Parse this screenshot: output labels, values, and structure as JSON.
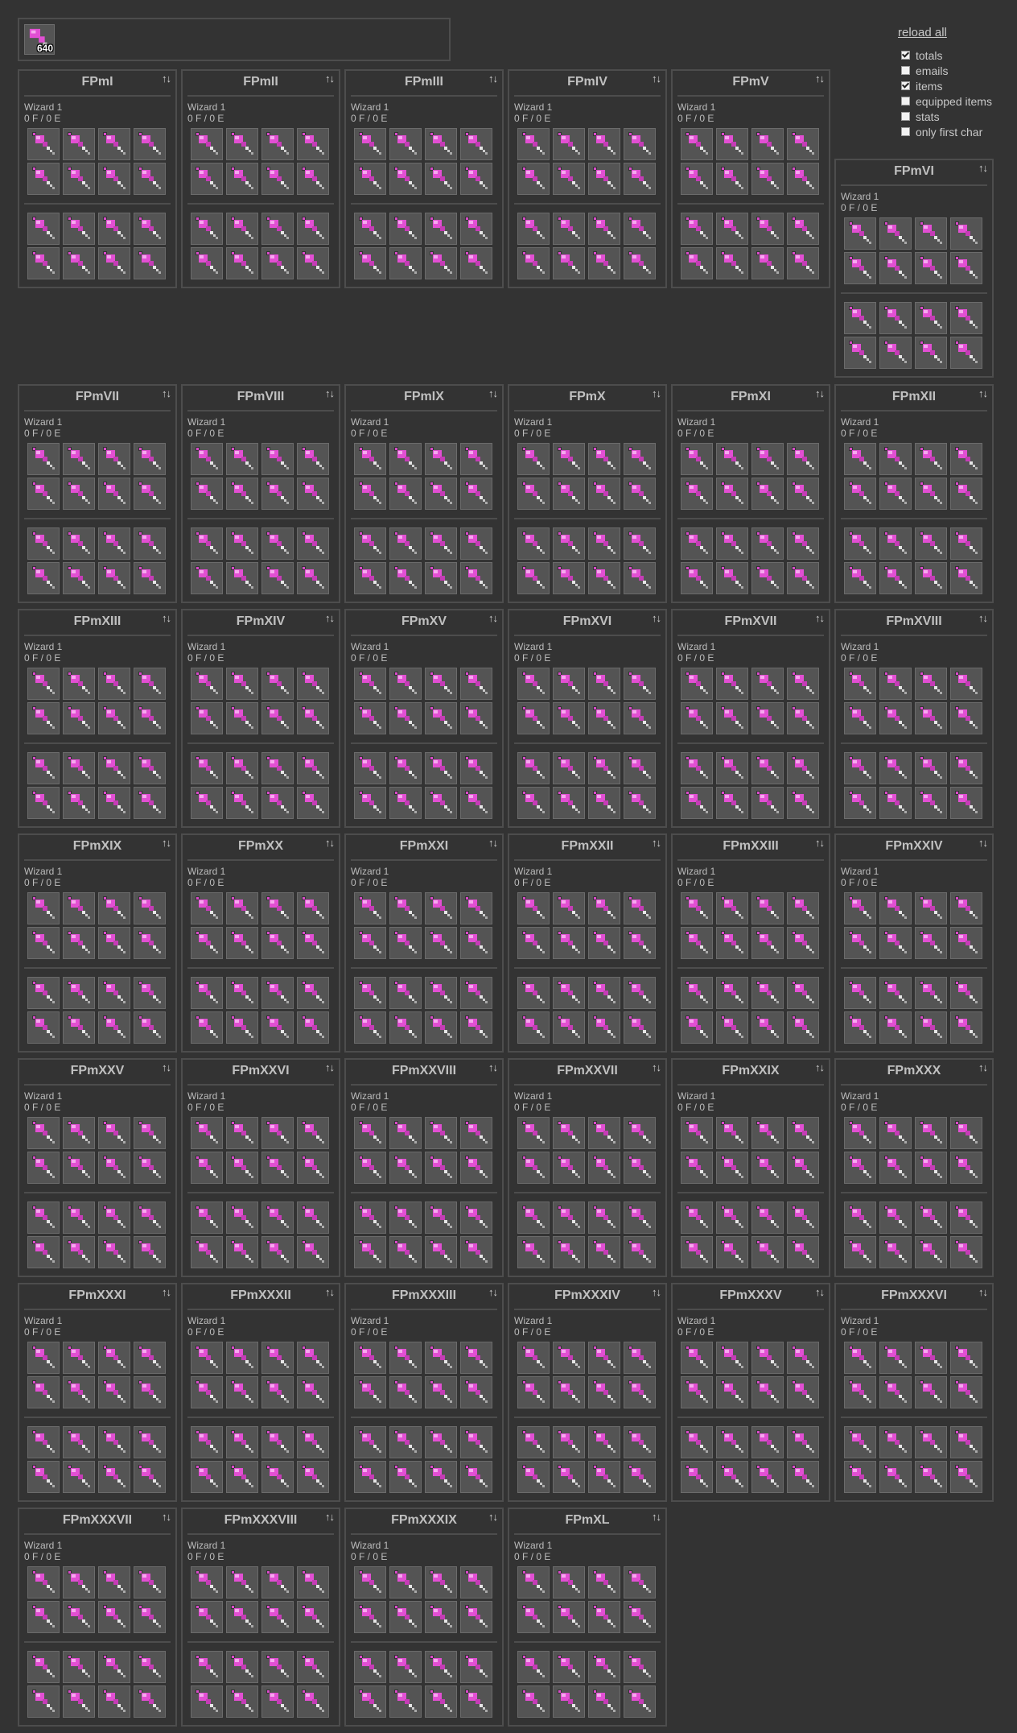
{
  "totals": {
    "count": "640",
    "item_icon": "pink-wand-icon"
  },
  "options": {
    "reload_label": "reload all",
    "checkboxes": [
      {
        "label": "totals",
        "checked": true
      },
      {
        "label": "emails",
        "checked": false
      },
      {
        "label": "items",
        "checked": true
      },
      {
        "label": "equipped items",
        "checked": false
      },
      {
        "label": "stats",
        "checked": false
      },
      {
        "label": "only first char",
        "checked": false
      }
    ]
  },
  "sort_icon": "↑↓",
  "slot_item": "pink-wand-icon",
  "colors": {
    "wand_pink": "#e24fd3",
    "wand_light": "#f6a8ee",
    "slot_bg": "#545454",
    "background": "#333333"
  },
  "characters": [
    {
      "name": "FPmI",
      "class": "Wizard 1",
      "fame": "0 F / 0 E"
    },
    {
      "name": "FPmII",
      "class": "Wizard 1",
      "fame": "0 F / 0 E"
    },
    {
      "name": "FPmIII",
      "class": "Wizard 1",
      "fame": "0 F / 0 E"
    },
    {
      "name": "FPmIV",
      "class": "Wizard 1",
      "fame": "0 F / 0 E"
    },
    {
      "name": "FPmV",
      "class": "Wizard 1",
      "fame": "0 F / 0 E"
    },
    {
      "name": "FPmVI",
      "class": "Wizard 1",
      "fame": "0 F / 0 E"
    },
    {
      "name": "FPmVII",
      "class": "Wizard 1",
      "fame": "0 F / 0 E"
    },
    {
      "name": "FPmVIII",
      "class": "Wizard 1",
      "fame": "0 F / 0 E"
    },
    {
      "name": "FPmIX",
      "class": "Wizard 1",
      "fame": "0 F / 0 E"
    },
    {
      "name": "FPmX",
      "class": "Wizard 1",
      "fame": "0 F / 0 E"
    },
    {
      "name": "FPmXI",
      "class": "Wizard 1",
      "fame": "0 F / 0 E"
    },
    {
      "name": "FPmXII",
      "class": "Wizard 1",
      "fame": "0 F / 0 E"
    },
    {
      "name": "FPmXIII",
      "class": "Wizard 1",
      "fame": "0 F / 0 E"
    },
    {
      "name": "FPmXIV",
      "class": "Wizard 1",
      "fame": "0 F / 0 E"
    },
    {
      "name": "FPmXV",
      "class": "Wizard 1",
      "fame": "0 F / 0 E"
    },
    {
      "name": "FPmXVI",
      "class": "Wizard 1",
      "fame": "0 F / 0 E"
    },
    {
      "name": "FPmXVII",
      "class": "Wizard 1",
      "fame": "0 F / 0 E"
    },
    {
      "name": "FPmXVIII",
      "class": "Wizard 1",
      "fame": "0 F / 0 E"
    },
    {
      "name": "FPmXIX",
      "class": "Wizard 1",
      "fame": "0 F / 0 E"
    },
    {
      "name": "FPmXX",
      "class": "Wizard 1",
      "fame": "0 F / 0 E"
    },
    {
      "name": "FPmXXI",
      "class": "Wizard 1",
      "fame": "0 F / 0 E"
    },
    {
      "name": "FPmXXII",
      "class": "Wizard 1",
      "fame": "0 F / 0 E"
    },
    {
      "name": "FPmXXIII",
      "class": "Wizard 1",
      "fame": "0 F / 0 E"
    },
    {
      "name": "FPmXXIV",
      "class": "Wizard 1",
      "fame": "0 F / 0 E"
    },
    {
      "name": "FPmXXV",
      "class": "Wizard 1",
      "fame": "0 F / 0 E"
    },
    {
      "name": "FPmXXVI",
      "class": "Wizard 1",
      "fame": "0 F / 0 E"
    },
    {
      "name": "FPmXXVIII",
      "class": "Wizard 1",
      "fame": "0 F / 0 E"
    },
    {
      "name": "FPmXXVII",
      "class": "Wizard 1",
      "fame": "0 F / 0 E"
    },
    {
      "name": "FPmXXIX",
      "class": "Wizard 1",
      "fame": "0 F / 0 E"
    },
    {
      "name": "FPmXXX",
      "class": "Wizard 1",
      "fame": "0 F / 0 E"
    },
    {
      "name": "FPmXXXI",
      "class": "Wizard 1",
      "fame": "0 F / 0 E"
    },
    {
      "name": "FPmXXXII",
      "class": "Wizard 1",
      "fame": "0 F / 0 E"
    },
    {
      "name": "FPmXXXIII",
      "class": "Wizard 1",
      "fame": "0 F / 0 E"
    },
    {
      "name": "FPmXXXIV",
      "class": "Wizard 1",
      "fame": "0 F / 0 E"
    },
    {
      "name": "FPmXXXV",
      "class": "Wizard 1",
      "fame": "0 F / 0 E"
    },
    {
      "name": "FPmXXXVI",
      "class": "Wizard 1",
      "fame": "0 F / 0 E"
    },
    {
      "name": "FPmXXXVII",
      "class": "Wizard 1",
      "fame": "0 F / 0 E"
    },
    {
      "name": "FPmXXXVIII",
      "class": "Wizard 1",
      "fame": "0 F / 0 E"
    },
    {
      "name": "FPmXXXIX",
      "class": "Wizard 1",
      "fame": "0 F / 0 E"
    },
    {
      "name": "FPmXL",
      "class": "Wizard 1",
      "fame": "0 F / 0 E"
    }
  ]
}
